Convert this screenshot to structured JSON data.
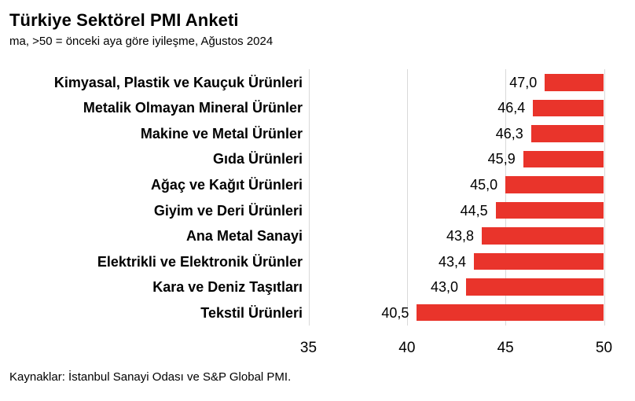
{
  "header": {
    "title": "Türkiye Sektörel PMI Anketi",
    "subtitle": "ma, >50 = önceki aya göre iyileşme, Ağustos 2024"
  },
  "footer": {
    "source": "Kaynaklar: İstanbul Sanayi Odası ve S&P Global PMI."
  },
  "chart_data": {
    "type": "bar",
    "orientation": "horizontal",
    "title": "Türkiye Sektörel PMI Anketi",
    "subtitle": "ma, >50 = önceki aya göre iyileşme, Ağustos 2024",
    "categories": [
      "Kimyasal, Plastik ve Kauçuk Ürünleri",
      "Metalik Olmayan Mineral Ürünler",
      "Makine ve Metal Ürünler",
      "Gıda Ürünleri",
      "Ağaç ve Kağıt Ürünleri",
      "Giyim ve Deri Ürünleri",
      "Ana Metal Sanayi",
      "Elektrikli ve Elektronik Ürünler",
      "Kara ve Deniz Taşıtları",
      "Tekstil Ürünleri"
    ],
    "values": [
      47.0,
      46.4,
      46.3,
      45.9,
      45.0,
      44.5,
      43.8,
      43.4,
      43.0,
      40.5
    ],
    "value_labels": [
      "47,0",
      "46,4",
      "46,3",
      "45,9",
      "45,0",
      "44,5",
      "43,8",
      "43,4",
      "43,0",
      "40,5"
    ],
    "bar_anchor": 50,
    "xlim": [
      35,
      50
    ],
    "xticks": [
      35,
      40,
      45,
      50
    ],
    "xtick_labels": [
      "35",
      "40",
      "45",
      "50"
    ],
    "grid": true,
    "legend": "none",
    "bar_color": "#e9342b",
    "gridline_color": "#d9d9d9",
    "text_color": "#000000",
    "source": "Kaynaklar: İstanbul Sanayi Odası ve S&P Global PMI."
  }
}
